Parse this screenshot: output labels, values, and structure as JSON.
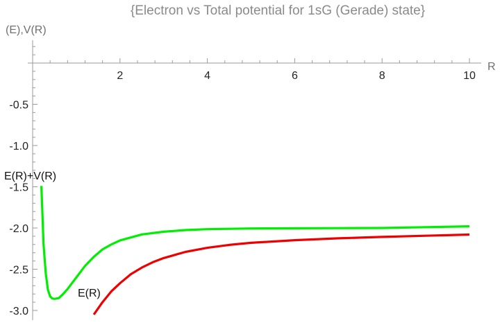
{
  "chart_data": {
    "type": "line",
    "title": "{Electron vs Total potential for 1sG (Gerade) state}",
    "xlabel": "R",
    "ylabel": "(E),V(R)",
    "xlim": [
      0,
      10
    ],
    "ylim": [
      -3.2,
      0.5
    ],
    "x_ticks": [
      2,
      4,
      6,
      8,
      10
    ],
    "y_ticks": [
      -0.5,
      -1.0,
      -1.5,
      -2.0,
      -2.5,
      -3.0
    ],
    "x_tick_labels": [
      "2",
      "4",
      "6",
      "8",
      "10"
    ],
    "y_tick_labels": [
      "-0.5",
      "-1.0",
      "-1.5",
      "-2.0",
      "-2.5",
      "-3.0"
    ],
    "grid": false,
    "series": [
      {
        "name": "E(R)+V(R)",
        "color": "#00ee00",
        "x": [
          0.2,
          0.25,
          0.3,
          0.35,
          0.4,
          0.45,
          0.5,
          0.6,
          0.7,
          0.8,
          0.9,
          1.0,
          1.2,
          1.4,
          1.6,
          1.8,
          2.0,
          2.5,
          3.0,
          3.5,
          4.0,
          5.0,
          6.0,
          7.0,
          8.0,
          9.0,
          10.0
        ],
        "values": [
          -1.49,
          -2.2,
          -2.55,
          -2.75,
          -2.83,
          -2.855,
          -2.86,
          -2.85,
          -2.8,
          -2.74,
          -2.67,
          -2.6,
          -2.46,
          -2.35,
          -2.26,
          -2.2,
          -2.15,
          -2.078,
          -2.045,
          -2.025,
          -2.014,
          -2.006,
          -2.003,
          -2.002,
          -2.0,
          -1.99,
          -1.98
        ]
      },
      {
        "name": "E(R)",
        "color": "#ee0000",
        "x": [
          1.4,
          1.6,
          1.8,
          2.0,
          2.25,
          2.5,
          2.75,
          3.0,
          3.5,
          4.0,
          4.5,
          5.0,
          6.0,
          7.0,
          8.0,
          9.0,
          10.0
        ],
        "values": [
          -3.05,
          -2.9,
          -2.77,
          -2.67,
          -2.56,
          -2.48,
          -2.415,
          -2.365,
          -2.29,
          -2.24,
          -2.205,
          -2.18,
          -2.148,
          -2.125,
          -2.108,
          -2.094,
          -2.08
        ]
      }
    ],
    "annotations": [
      "E(R)+V(R)",
      "E(R)"
    ]
  }
}
